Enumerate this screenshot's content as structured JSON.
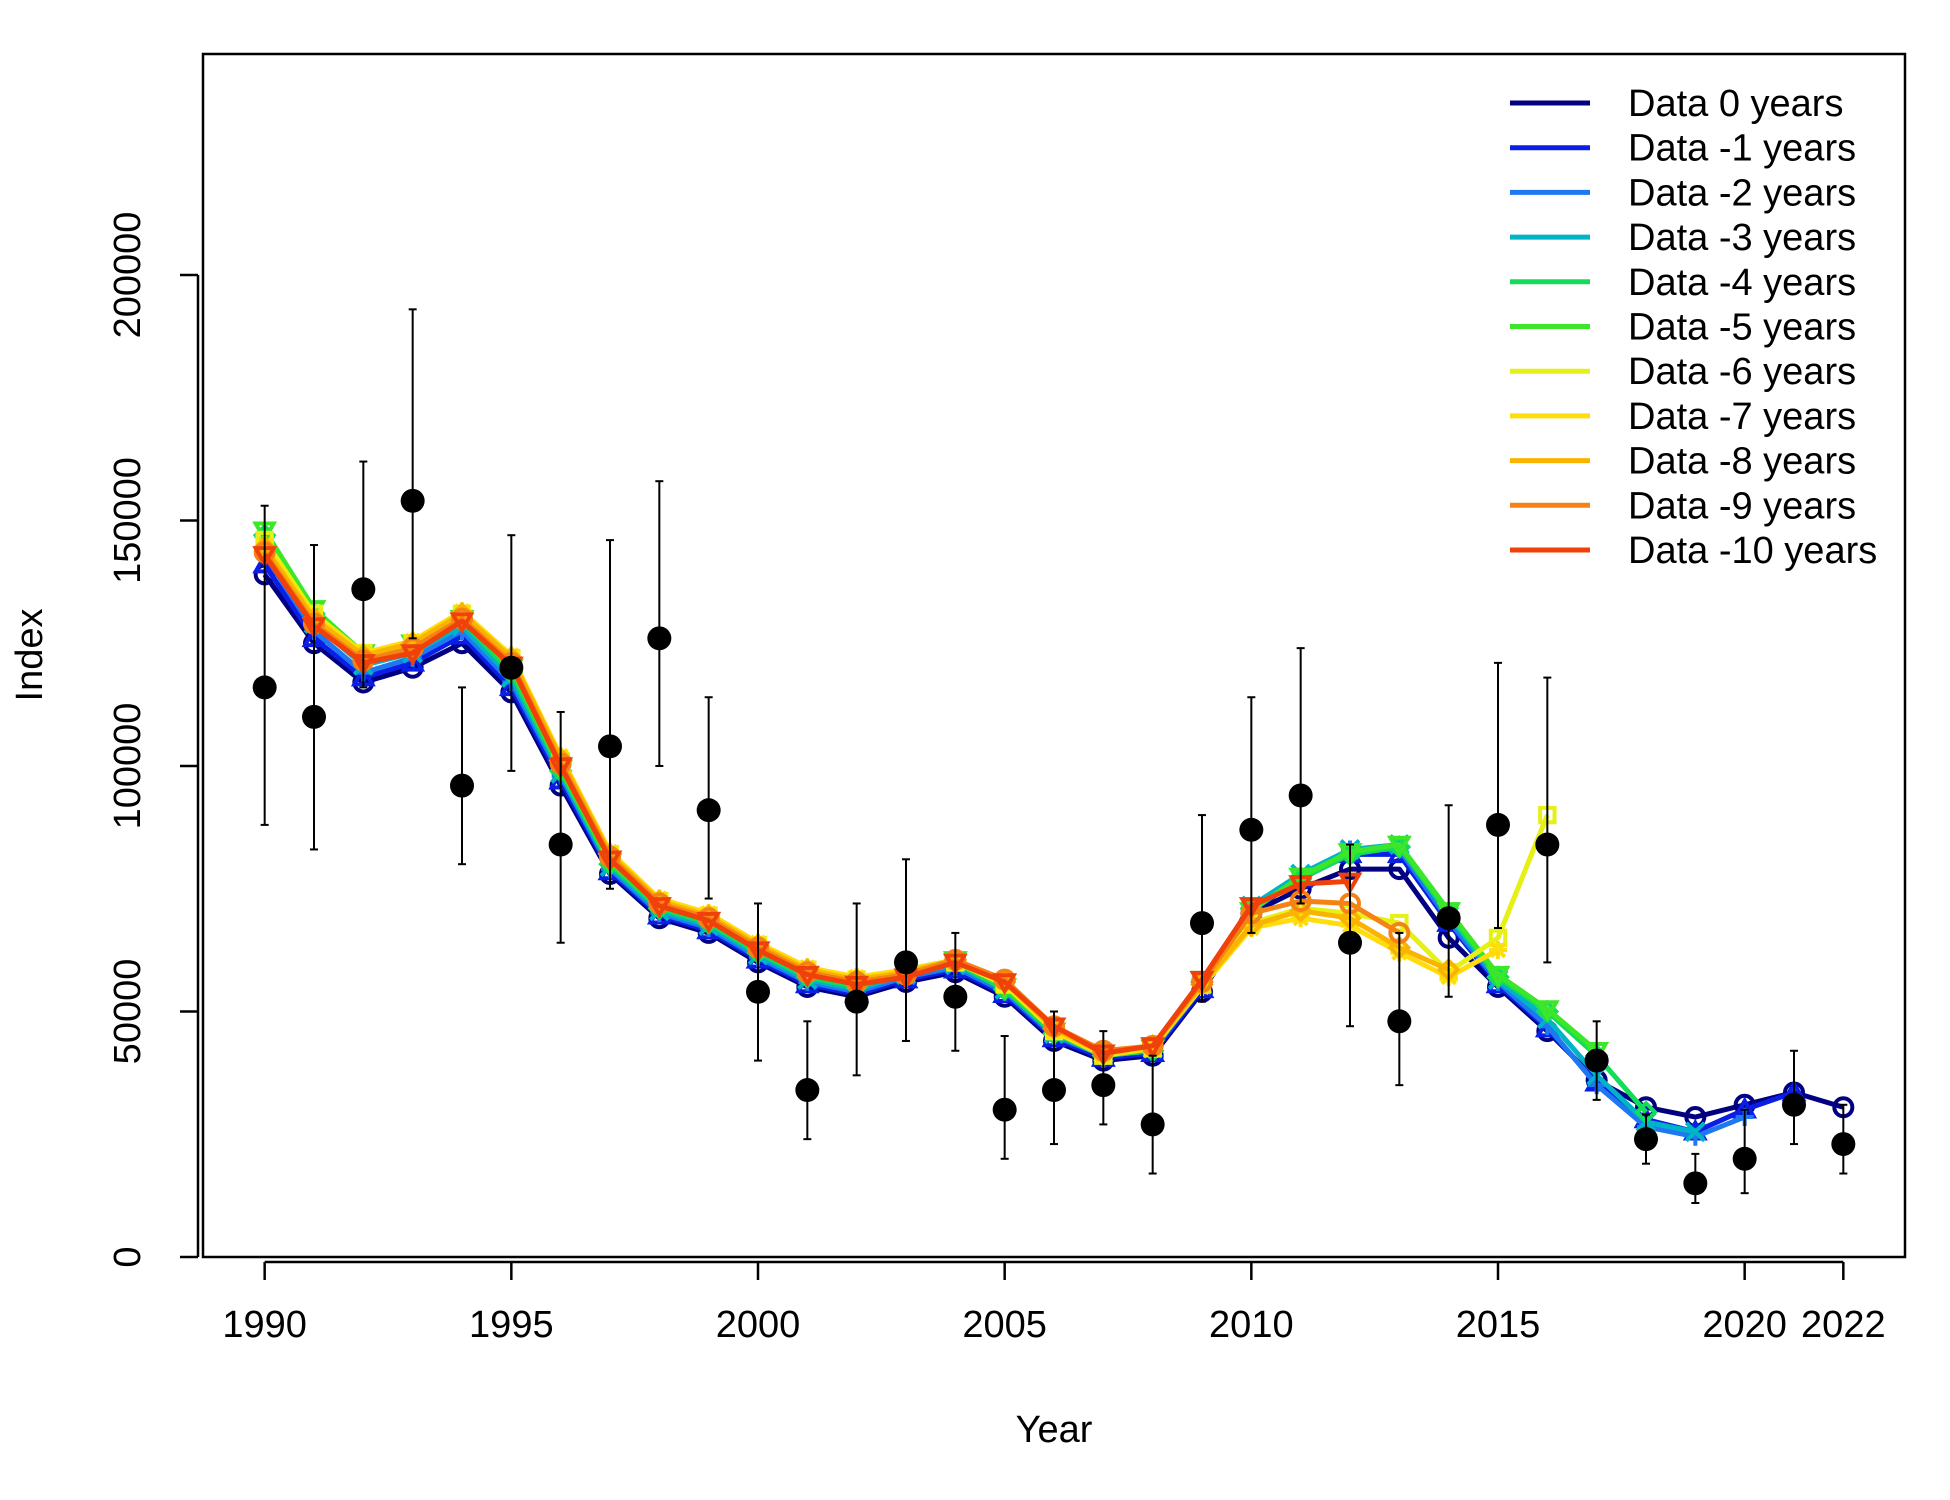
{
  "chart_data": {
    "type": "line",
    "xlabel": "Year",
    "ylabel": "Index",
    "xlim": [
      1988.75,
      2023.25
    ],
    "ylim": [
      0,
      245000
    ],
    "xticks": [
      1990,
      1995,
      2000,
      2005,
      2010,
      2015,
      2020,
      2022
    ],
    "xtick_labels": [
      "1990",
      "1995",
      "2000",
      "2005",
      "2010",
      "2015",
      "2020",
      "2022"
    ],
    "yticks": [
      0,
      50000,
      100000,
      150000,
      200000
    ],
    "ytick_labels": [
      "0",
      "50000",
      "100000",
      "150000",
      "200000"
    ],
    "legend_position": "top-right",
    "grid": false,
    "observed": {
      "x": [
        1990,
        1991,
        1992,
        1993,
        1994,
        1995,
        1996,
        1997,
        1998,
        1999,
        2000,
        2001,
        2002,
        2003,
        2004,
        2005,
        2006,
        2007,
        2008,
        2009,
        2010,
        2011,
        2012,
        2013,
        2014,
        2015,
        2016,
        2017,
        2018,
        2019,
        2020,
        2021,
        2022
      ],
      "y": [
        116000,
        110000,
        136000,
        154000,
        96000,
        120000,
        84000,
        104000,
        126000,
        91000,
        54000,
        34000,
        52000,
        60000,
        53000,
        30000,
        34000,
        35000,
        27000,
        68000,
        87000,
        94000,
        64000,
        48000,
        69000,
        88000,
        84000,
        40000,
        24000,
        15000,
        20000,
        31000,
        23000
      ],
      "lower": [
        88000,
        83000,
        116000,
        126000,
        80000,
        99000,
        64000,
        75000,
        100000,
        73000,
        40000,
        24000,
        37000,
        44000,
        42000,
        20000,
        23000,
        27000,
        17000,
        52000,
        66000,
        72000,
        47000,
        35000,
        53000,
        67000,
        60000,
        32000,
        19000,
        11000,
        13000,
        23000,
        17000
      ],
      "upper": [
        153000,
        145000,
        162000,
        193000,
        116000,
        147000,
        111000,
        146000,
        158000,
        114000,
        72000,
        48000,
        72000,
        81000,
        66000,
        45000,
        50000,
        46000,
        41000,
        90000,
        114000,
        124000,
        84000,
        66000,
        92000,
        121000,
        118000,
        48000,
        29000,
        21000,
        30000,
        42000,
        31000
      ]
    },
    "series": [
      {
        "name": "Data 0 years",
        "color": "#000080",
        "marker": "circle",
        "x_start": 1990,
        "values": [
          139000,
          125000,
          117000,
          120000,
          125000,
          115000,
          96000,
          78000,
          69000,
          66000,
          60000,
          55000,
          53000,
          56000,
          58000,
          53000,
          44000,
          40000,
          41000,
          54000,
          70000,
          75000,
          79000,
          79000,
          65000,
          55000,
          46000,
          36000,
          30500,
          28500,
          31000,
          33500,
          30500
        ]
      },
      {
        "name": "Data -1 years",
        "color": "#0A1EE6",
        "marker": "triangle",
        "x_start": 1990,
        "values": [
          141000,
          126000,
          118000,
          121000,
          126500,
          116000,
          97000,
          78500,
          69500,
          66500,
          60500,
          55500,
          53500,
          56500,
          58500,
          53500,
          44500,
          40500,
          41500,
          54500,
          70500,
          77000,
          82000,
          82000,
          68000,
          55500,
          46500,
          35500,
          28000,
          25500,
          30000,
          33500
        ]
      },
      {
        "name": "Data -2 years",
        "color": "#1E78F0",
        "marker": "plus",
        "x_start": 1990,
        "values": [
          143000,
          127500,
          119000,
          122000,
          127500,
          117000,
          98000,
          79000,
          70000,
          67000,
          61000,
          56000,
          54000,
          57000,
          59000,
          54000,
          45000,
          41000,
          42000,
          55000,
          71000,
          77500,
          83000,
          83000,
          68500,
          56000,
          47000,
          35000,
          26500,
          24500,
          28500
        ]
      },
      {
        "name": "Data -3 years",
        "color": "#00B4C8",
        "marker": "x",
        "x_start": 1990,
        "values": [
          145000,
          129000,
          120500,
          123000,
          128500,
          118000,
          98500,
          79500,
          70500,
          67500,
          61500,
          56500,
          54500,
          57500,
          59500,
          54500,
          45500,
          41500,
          42500,
          55500,
          71500,
          78000,
          83000,
          84000,
          69500,
          56500,
          48500,
          37000,
          27500,
          25500
        ]
      },
      {
        "name": "Data -4 years",
        "color": "#14DC5A",
        "marker": "diamond",
        "x_start": 1990,
        "values": [
          147000,
          131000,
          122000,
          124000,
          129500,
          119000,
          99000,
          80000,
          71000,
          68000,
          62000,
          57000,
          55000,
          58000,
          60000,
          54500,
          45500,
          41000,
          42000,
          56000,
          71000,
          77000,
          82000,
          83500,
          70000,
          57000,
          50000,
          41000,
          29500
        ]
      },
      {
        "name": "Data -5 years",
        "color": "#3CE628",
        "marker": "triangle-down",
        "x_start": 1990,
        "values": [
          148000,
          132000,
          123000,
          125000,
          130000,
          120000,
          99500,
          80500,
          71500,
          68500,
          62500,
          57500,
          55500,
          58500,
          60500,
          55000,
          46000,
          41000,
          42500,
          56500,
          70500,
          77500,
          82500,
          84000,
          70500,
          57500,
          50500,
          42000
        ]
      },
      {
        "name": "Data -6 years",
        "color": "#E6F014",
        "marker": "square",
        "x_start": 1990,
        "values": [
          146000,
          131000,
          123000,
          125000,
          131000,
          122000,
          101000,
          82000,
          72500,
          69500,
          63500,
          58500,
          56500,
          58500,
          60000,
          55500,
          46000,
          41000,
          42500,
          55500,
          68000,
          71000,
          70000,
          68000,
          58000,
          65000,
          90000
        ]
      },
      {
        "name": "Data -7 years",
        "color": "#FFDC0A",
        "marker": "star",
        "x_start": 1990,
        "values": [
          145000,
          130500,
          123000,
          125500,
          131500,
          122500,
          102000,
          82500,
          73000,
          70000,
          64000,
          59000,
          57000,
          58500,
          60500,
          56000,
          46000,
          41000,
          42500,
          55000,
          67000,
          69000,
          67500,
          62000,
          57000,
          62500
        ]
      },
      {
        "name": "Data -8 years",
        "color": "#FAB400",
        "marker": "diamond",
        "x_start": 1990,
        "values": [
          144500,
          130000,
          122500,
          125000,
          131000,
          122000,
          101500,
          82000,
          72500,
          69500,
          63500,
          58500,
          56500,
          58000,
          60500,
          56000,
          46500,
          41500,
          43000,
          55500,
          67500,
          70500,
          69000,
          63000,
          58500
        ]
      },
      {
        "name": "Data -9 years",
        "color": "#F58214",
        "marker": "circle",
        "x_start": 1990,
        "values": [
          143500,
          129000,
          121500,
          124000,
          130000,
          121000,
          100500,
          81500,
          72000,
          69000,
          63000,
          58000,
          56000,
          57500,
          60500,
          56500,
          47000,
          42000,
          43000,
          56000,
          70000,
          72500,
          72000,
          66000
        ]
      },
      {
        "name": "Data -10 years",
        "color": "#F0410A",
        "marker": "triangle-down",
        "x_start": 1990,
        "values": [
          143000,
          128500,
          121000,
          123000,
          129500,
          120500,
          100000,
          81000,
          71500,
          68500,
          62500,
          57500,
          55500,
          57000,
          60000,
          56000,
          47000,
          41500,
          43000,
          56500,
          71500,
          76000,
          76500
        ]
      }
    ]
  }
}
